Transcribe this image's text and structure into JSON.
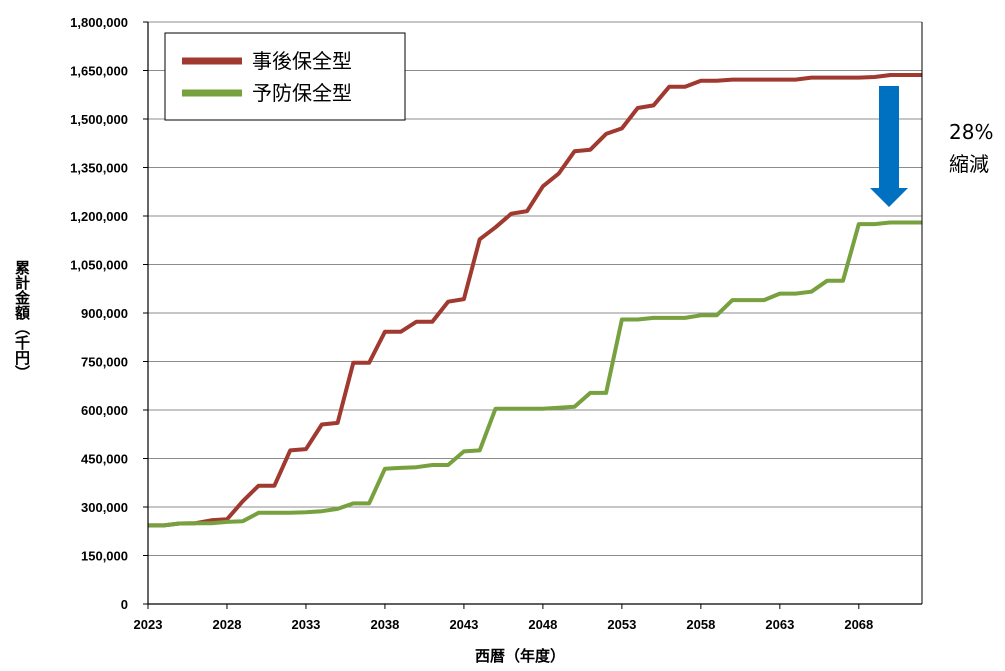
{
  "chart_data": {
    "type": "line",
    "ylabel": "累計金額（千円）",
    "xlabel": "西暦（年度）",
    "ylim": [
      0,
      1800000
    ],
    "yticks": [
      0,
      150000,
      300000,
      450000,
      600000,
      750000,
      900000,
      1050000,
      1200000,
      1350000,
      1500000,
      1650000,
      1800000
    ],
    "ytick_labels": [
      "0",
      "150,000",
      "300,000",
      "450,000",
      "600,000",
      "750,000",
      "900,000",
      "1,050,000",
      "1,200,000",
      "1,350,000",
      "1,500,000",
      "1,650,000",
      "1,800,000"
    ],
    "xlim": [
      2023,
      2072
    ],
    "xticks": [
      2023,
      2028,
      2033,
      2038,
      2043,
      2048,
      2053,
      2058,
      2063,
      2068
    ],
    "xtick_labels": [
      "2023",
      "2028",
      "2033",
      "2038",
      "2043",
      "2048",
      "2053",
      "2058",
      "2063",
      "2068"
    ],
    "grid": true,
    "legend_position": "top-left",
    "x": [
      2023,
      2024,
      2025,
      2026,
      2027,
      2028,
      2029,
      2030,
      2031,
      2032,
      2033,
      2034,
      2035,
      2036,
      2037,
      2038,
      2039,
      2040,
      2041,
      2042,
      2043,
      2044,
      2045,
      2046,
      2047,
      2048,
      2049,
      2050,
      2051,
      2052,
      2053,
      2054,
      2055,
      2056,
      2057,
      2058,
      2059,
      2060,
      2061,
      2062,
      2063,
      2064,
      2065,
      2066,
      2067,
      2068,
      2069,
      2070,
      2071,
      2072
    ],
    "series": [
      {
        "name": "事後保全型",
        "color": "#a0392f",
        "values": [
          243000,
          243000,
          249000,
          250000,
          259000,
          262000,
          318000,
          366000,
          366000,
          475000,
          479000,
          555000,
          560000,
          746000,
          746000,
          842000,
          842000,
          873000,
          873000,
          935000,
          943000,
          1128000,
          1165000,
          1207000,
          1215000,
          1292000,
          1331000,
          1400000,
          1405000,
          1454000,
          1471000,
          1534000,
          1542000,
          1600000,
          1600000,
          1618000,
          1618000,
          1622000,
          1622000,
          1622000,
          1622000,
          1622000,
          1628000,
          1628000,
          1628000,
          1628000,
          1630000,
          1636000,
          1636000,
          1636000
        ]
      },
      {
        "name": "予防保全型",
        "color": "#77a03f",
        "values": [
          243000,
          243000,
          249000,
          250000,
          250000,
          254000,
          256000,
          282000,
          282000,
          282000,
          284000,
          287000,
          294000,
          311000,
          311000,
          418000,
          421000,
          423000,
          430000,
          430000,
          472000,
          475000,
          604000,
          604000,
          604000,
          604000,
          607000,
          610000,
          653000,
          653000,
          880000,
          880000,
          885000,
          885000,
          885000,
          893000,
          893000,
          940000,
          940000,
          940000,
          960000,
          960000,
          966000,
          1000000,
          1000000,
          1175000,
          1175000,
          1180000,
          1180000,
          1180000
        ]
      }
    ],
    "annotation": {
      "text_line1": "28%",
      "text_line2": "縮減",
      "arrow_color": "#0070c0"
    }
  }
}
